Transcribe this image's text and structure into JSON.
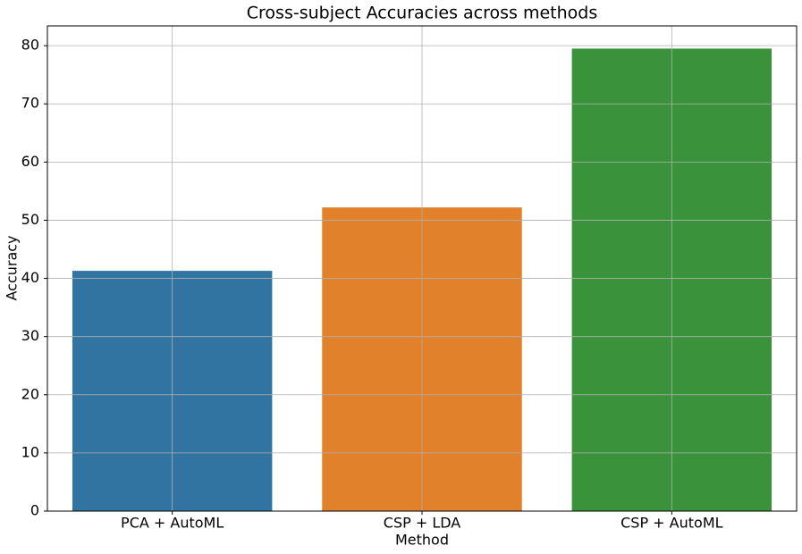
{
  "chart_data": {
    "type": "bar",
    "title": "Cross-subject Accuracies across methods",
    "x_label": "Method",
    "y_label": "Accuracy",
    "categories": [
      "PCA + AutoML",
      "CSP + LDA",
      "CSP + AutoML"
    ],
    "values": [
      41.3,
      52.2,
      79.5
    ],
    "colors": [
      "#3274a1",
      "#e1812c",
      "#3a923a"
    ],
    "ylim": [
      0,
      83.4
    ],
    "yticks": [
      0,
      10,
      20,
      30,
      40,
      50,
      60,
      70,
      80
    ],
    "grid": true
  }
}
